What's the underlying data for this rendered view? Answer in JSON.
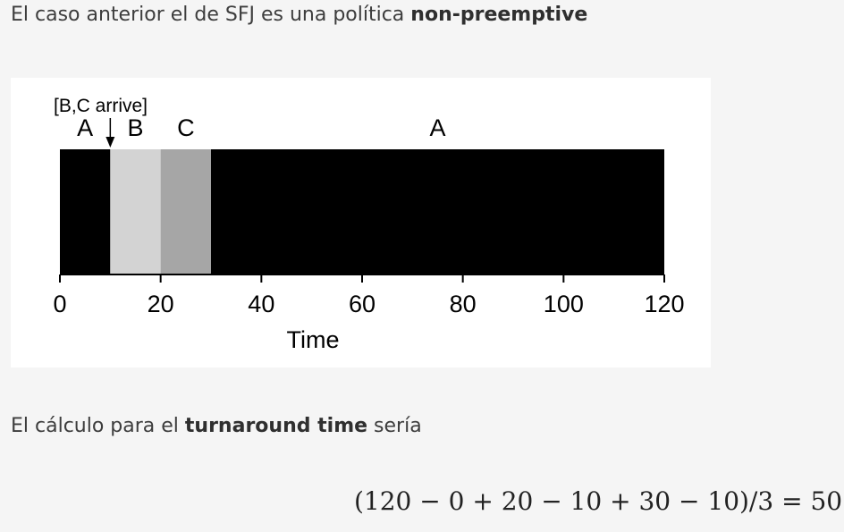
{
  "paragraph1": {
    "text": "El caso anterior el de SFJ es una política ",
    "bold": "non-preemptive"
  },
  "paragraph2": {
    "text_before": "El cálculo para el ",
    "bold": "turnaround time",
    "text_after": " sería"
  },
  "formula": "(120 − 0 + 20 − 10 + 30 − 10)/3 = 50",
  "chart_data": {
    "type": "bar",
    "orientation": "horizontal-timeline",
    "xlabel": "Time",
    "xlim": [
      0,
      120
    ],
    "xticks": [
      0,
      20,
      40,
      60,
      80,
      100,
      120
    ],
    "annotation": {
      "text": "[B,C arrive]",
      "at": 10
    },
    "segments": [
      {
        "name": "A",
        "start": 0,
        "end": 10,
        "color": "#000000"
      },
      {
        "name": "B",
        "start": 10,
        "end": 20,
        "color": "#d3d3d3"
      },
      {
        "name": "C",
        "start": 20,
        "end": 30,
        "color": "#a6a6a6"
      },
      {
        "name": "A",
        "start": 30,
        "end": 120,
        "color": "#000000"
      }
    ]
  }
}
